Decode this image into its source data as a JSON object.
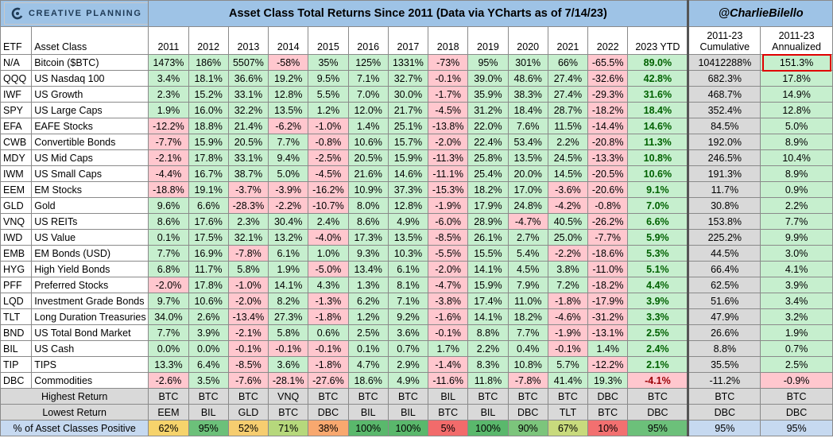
{
  "brand": {
    "logo_text": "CREATIVE PLANNING"
  },
  "title": "Asset Class Total Returns Since 2011 (Data via YCharts as of 7/14/23)",
  "handle": "@CharlieBilello",
  "chart_data": {
    "type": "table",
    "columns": [
      "ETF",
      "Asset Class",
      "2011",
      "2012",
      "2013",
      "2014",
      "2015",
      "2016",
      "2017",
      "2018",
      "2019",
      "2020",
      "2021",
      "2022",
      "2023 YTD",
      "2011-23 Cumulative",
      "2011-23 Annualized"
    ],
    "rows": [
      {
        "etf": "N/A",
        "name": "Bitcoin ($BTC)",
        "values": [
          "1473%",
          "186%",
          "5507%",
          "-58%",
          "35%",
          "125%",
          "1331%",
          "-73%",
          "95%",
          "301%",
          "66%",
          "-65.5%",
          "89.0%"
        ],
        "cumulative": "10412288%",
        "annualized": "151.3%"
      },
      {
        "etf": "QQQ",
        "name": "US Nasdaq 100",
        "values": [
          "3.4%",
          "18.1%",
          "36.6%",
          "19.2%",
          "9.5%",
          "7.1%",
          "32.7%",
          "-0.1%",
          "39.0%",
          "48.6%",
          "27.4%",
          "-32.6%",
          "42.8%"
        ],
        "cumulative": "682.3%",
        "annualized": "17.8%"
      },
      {
        "etf": "IWF",
        "name": "US Growth",
        "values": [
          "2.3%",
          "15.2%",
          "33.1%",
          "12.8%",
          "5.5%",
          "7.0%",
          "30.0%",
          "-1.7%",
          "35.9%",
          "38.3%",
          "27.4%",
          "-29.3%",
          "31.6%"
        ],
        "cumulative": "468.7%",
        "annualized": "14.9%"
      },
      {
        "etf": "SPY",
        "name": "US Large Caps",
        "values": [
          "1.9%",
          "16.0%",
          "32.2%",
          "13.5%",
          "1.2%",
          "12.0%",
          "21.7%",
          "-4.5%",
          "31.2%",
          "18.4%",
          "28.7%",
          "-18.2%",
          "18.4%"
        ],
        "cumulative": "352.4%",
        "annualized": "12.8%"
      },
      {
        "etf": "EFA",
        "name": "EAFE Stocks",
        "values": [
          "-12.2%",
          "18.8%",
          "21.4%",
          "-6.2%",
          "-1.0%",
          "1.4%",
          "25.1%",
          "-13.8%",
          "22.0%",
          "7.6%",
          "11.5%",
          "-14.4%",
          "14.6%"
        ],
        "cumulative": "84.5%",
        "annualized": "5.0%"
      },
      {
        "etf": "CWB",
        "name": "Convertible Bonds",
        "values": [
          "-7.7%",
          "15.9%",
          "20.5%",
          "7.7%",
          "-0.8%",
          "10.6%",
          "15.7%",
          "-2.0%",
          "22.4%",
          "53.4%",
          "2.2%",
          "-20.8%",
          "11.3%"
        ],
        "cumulative": "192.0%",
        "annualized": "8.9%"
      },
      {
        "etf": "MDY",
        "name": "US Mid Caps",
        "values": [
          "-2.1%",
          "17.8%",
          "33.1%",
          "9.4%",
          "-2.5%",
          "20.5%",
          "15.9%",
          "-11.3%",
          "25.8%",
          "13.5%",
          "24.5%",
          "-13.3%",
          "10.8%"
        ],
        "cumulative": "246.5%",
        "annualized": "10.4%"
      },
      {
        "etf": "IWM",
        "name": "US Small Caps",
        "values": [
          "-4.4%",
          "16.7%",
          "38.7%",
          "5.0%",
          "-4.5%",
          "21.6%",
          "14.6%",
          "-11.1%",
          "25.4%",
          "20.0%",
          "14.5%",
          "-20.5%",
          "10.6%"
        ],
        "cumulative": "191.3%",
        "annualized": "8.9%"
      },
      {
        "etf": "EEM",
        "name": "EM Stocks",
        "values": [
          "-18.8%",
          "19.1%",
          "-3.7%",
          "-3.9%",
          "-16.2%",
          "10.9%",
          "37.3%",
          "-15.3%",
          "18.2%",
          "17.0%",
          "-3.6%",
          "-20.6%",
          "9.1%"
        ],
        "cumulative": "11.7%",
        "annualized": "0.9%"
      },
      {
        "etf": "GLD",
        "name": "Gold",
        "values": [
          "9.6%",
          "6.6%",
          "-28.3%",
          "-2.2%",
          "-10.7%",
          "8.0%",
          "12.8%",
          "-1.9%",
          "17.9%",
          "24.8%",
          "-4.2%",
          "-0.8%",
          "7.0%"
        ],
        "cumulative": "30.8%",
        "annualized": "2.2%"
      },
      {
        "etf": "VNQ",
        "name": "US REITs",
        "values": [
          "8.6%",
          "17.6%",
          "2.3%",
          "30.4%",
          "2.4%",
          "8.6%",
          "4.9%",
          "-6.0%",
          "28.9%",
          "-4.7%",
          "40.5%",
          "-26.2%",
          "6.6%"
        ],
        "cumulative": "153.8%",
        "annualized": "7.7%"
      },
      {
        "etf": "IWD",
        "name": "US Value",
        "values": [
          "0.1%",
          "17.5%",
          "32.1%",
          "13.2%",
          "-4.0%",
          "17.3%",
          "13.5%",
          "-8.5%",
          "26.1%",
          "2.7%",
          "25.0%",
          "-7.7%",
          "5.9%"
        ],
        "cumulative": "225.2%",
        "annualized": "9.9%"
      },
      {
        "etf": "EMB",
        "name": "EM Bonds (USD)",
        "values": [
          "7.7%",
          "16.9%",
          "-7.8%",
          "6.1%",
          "1.0%",
          "9.3%",
          "10.3%",
          "-5.5%",
          "15.5%",
          "5.4%",
          "-2.2%",
          "-18.6%",
          "5.3%"
        ],
        "cumulative": "44.5%",
        "annualized": "3.0%"
      },
      {
        "etf": "HYG",
        "name": "High Yield Bonds",
        "values": [
          "6.8%",
          "11.7%",
          "5.8%",
          "1.9%",
          "-5.0%",
          "13.4%",
          "6.1%",
          "-2.0%",
          "14.1%",
          "4.5%",
          "3.8%",
          "-11.0%",
          "5.1%"
        ],
        "cumulative": "66.4%",
        "annualized": "4.1%"
      },
      {
        "etf": "PFF",
        "name": "Preferred Stocks",
        "values": [
          "-2.0%",
          "17.8%",
          "-1.0%",
          "14.1%",
          "4.3%",
          "1.3%",
          "8.1%",
          "-4.7%",
          "15.9%",
          "7.9%",
          "7.2%",
          "-18.2%",
          "4.4%"
        ],
        "cumulative": "62.5%",
        "annualized": "3.9%"
      },
      {
        "etf": "LQD",
        "name": "Investment Grade Bonds",
        "values": [
          "9.7%",
          "10.6%",
          "-2.0%",
          "8.2%",
          "-1.3%",
          "6.2%",
          "7.1%",
          "-3.8%",
          "17.4%",
          "11.0%",
          "-1.8%",
          "-17.9%",
          "3.9%"
        ],
        "cumulative": "51.6%",
        "annualized": "3.4%"
      },
      {
        "etf": "TLT",
        "name": "Long Duration Treasuries",
        "values": [
          "34.0%",
          "2.6%",
          "-13.4%",
          "27.3%",
          "-1.8%",
          "1.2%",
          "9.2%",
          "-1.6%",
          "14.1%",
          "18.2%",
          "-4.6%",
          "-31.2%",
          "3.3%"
        ],
        "cumulative": "47.9%",
        "annualized": "3.2%"
      },
      {
        "etf": "BND",
        "name": "US Total Bond Market",
        "values": [
          "7.7%",
          "3.9%",
          "-2.1%",
          "5.8%",
          "0.6%",
          "2.5%",
          "3.6%",
          "-0.1%",
          "8.8%",
          "7.7%",
          "-1.9%",
          "-13.1%",
          "2.5%"
        ],
        "cumulative": "26.6%",
        "annualized": "1.9%"
      },
      {
        "etf": "BIL",
        "name": "US Cash",
        "values": [
          "0.0%",
          "0.0%",
          "-0.1%",
          "-0.1%",
          "-0.1%",
          "0.1%",
          "0.7%",
          "1.7%",
          "2.2%",
          "0.4%",
          "-0.1%",
          "1.4%",
          "2.4%"
        ],
        "cumulative": "8.8%",
        "annualized": "0.7%"
      },
      {
        "etf": "TIP",
        "name": "TIPS",
        "values": [
          "13.3%",
          "6.4%",
          "-8.5%",
          "3.6%",
          "-1.8%",
          "4.7%",
          "2.9%",
          "-1.4%",
          "8.3%",
          "10.8%",
          "5.7%",
          "-12.2%",
          "2.1%"
        ],
        "cumulative": "35.5%",
        "annualized": "2.5%"
      },
      {
        "etf": "DBC",
        "name": "Commodities",
        "values": [
          "-2.6%",
          "3.5%",
          "-7.6%",
          "-28.1%",
          "-27.6%",
          "18.6%",
          "4.9%",
          "-11.6%",
          "11.8%",
          "-7.8%",
          "41.4%",
          "19.3%",
          "-4.1%"
        ],
        "cumulative": "-11.2%",
        "annualized": "-0.9%"
      }
    ],
    "summary": [
      {
        "label": "Highest Return",
        "values": [
          "BTC",
          "BTC",
          "BTC",
          "VNQ",
          "BTC",
          "BTC",
          "BTC",
          "BIL",
          "BTC",
          "BTC",
          "BTC",
          "DBC",
          "BTC",
          "BTC",
          "BTC"
        ]
      },
      {
        "label": "Lowest Return",
        "values": [
          "EEM",
          "BIL",
          "GLD",
          "BTC",
          "DBC",
          "BIL",
          "BIL",
          "BTC",
          "BIL",
          "DBC",
          "TLT",
          "BTC",
          "DBC",
          "DBC",
          "DBC"
        ]
      },
      {
        "label": "% of Asset Classes Positive",
        "values": [
          "62%",
          "95%",
          "52%",
          "71%",
          "38%",
          "100%",
          "100%",
          "5%",
          "100%",
          "90%",
          "67%",
          "10%",
          "95%",
          "95%",
          "95%"
        ]
      }
    ],
    "pct_positive_colors": [
      "#f6d36c",
      "#6cc07a",
      "#f6cd70",
      "#b6d87c",
      "#f8a86f",
      "#5ab86c",
      "#5ab86c",
      "#f26b6b",
      "#5ab86c",
      "#7cc57c",
      "#c8da7d",
      "#f27070",
      "#6cc07a",
      "#c6d9f0",
      "#c6d9f0"
    ],
    "highlighted_cell": {
      "row": 0,
      "column": "2011-23 Annualized",
      "border_color": "#e00000"
    },
    "colors": {
      "positive_fill": "#c6efce",
      "negative_fill": "#ffc7ce",
      "header_fill": "#9ec3e6",
      "ytd_positive_text": "#006100",
      "ytd_negative_text": "#9c0006",
      "summary_fill": "#d9d9d9"
    }
  }
}
